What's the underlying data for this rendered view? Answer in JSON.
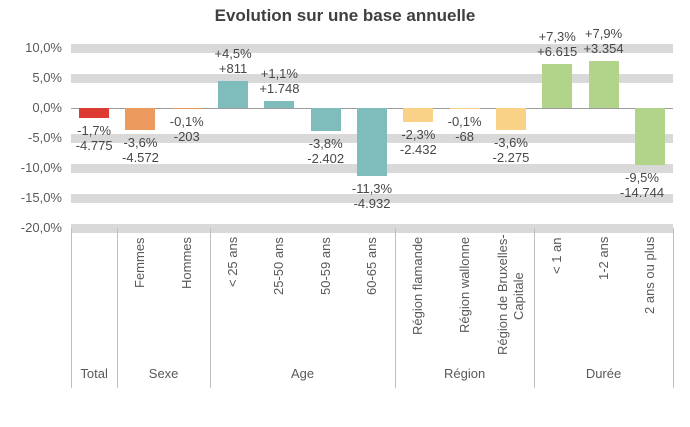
{
  "title": "Evolution sur une base annuelle",
  "colors": {
    "total_bar": "#dc3b32",
    "sexe_bar": "#ec9a5e",
    "age_bar": "#7fbdbd",
    "region_bar": "#fad287",
    "duree_bar": "#b2d38a",
    "gridline": "#d9d9d9",
    "zero_line": "#9c9c9c",
    "divider_line": "#bfbfbf",
    "title_text": "#404040",
    "data_label_text": "#474747",
    "axis_text": "#595959"
  },
  "chart_data": {
    "type": "bar",
    "title": "Evolution sur une base annuelle",
    "xlabel": "",
    "ylabel": "",
    "y_unit": "percent",
    "ylim": [
      -20,
      10
    ],
    "grid": "thick-stripes",
    "legend": "none",
    "y_axis": {
      "ticks": [
        {
          "value": 10,
          "label": "10,0%"
        },
        {
          "value": 5,
          "label": "5,0%"
        },
        {
          "value": 0,
          "label": "0,0%"
        },
        {
          "value": -5,
          "label": "-5,0%"
        },
        {
          "value": -10,
          "label": "-10,0%"
        },
        {
          "value": -15,
          "label": "-15,0%"
        },
        {
          "value": -20,
          "label": "-20,0%"
        }
      ],
      "gridline_values": [
        10,
        5,
        -5,
        -10,
        -15,
        -20
      ]
    },
    "groups": [
      {
        "label": "Total",
        "color": "#dc3b32",
        "bars": [
          {
            "category": "",
            "value_pct": -1.7,
            "abs_value": -4775,
            "pct_label": "-1,7%",
            "abs_label": "-4.775"
          }
        ]
      },
      {
        "label": "Sexe",
        "color": "#ec9a5e",
        "bars": [
          {
            "category": "Femmes",
            "value_pct": -3.6,
            "abs_value": -4572,
            "pct_label": "-3,6%",
            "abs_label": "-4.572"
          },
          {
            "category": "Hommes",
            "value_pct": -0.1,
            "abs_value": -203,
            "pct_label": "-0,1%",
            "abs_label": "-203"
          }
        ]
      },
      {
        "label": "Age",
        "color": "#7fbdbd",
        "bars": [
          {
            "category": "< 25 ans",
            "value_pct": 4.5,
            "abs_value": 811,
            "pct_label": "+4,5%",
            "abs_label": "+811"
          },
          {
            "category": "25-50 ans",
            "value_pct": 1.1,
            "abs_value": 1748,
            "pct_label": "+1,1%",
            "abs_label": "+1.748"
          },
          {
            "category": "50-59 ans",
            "value_pct": -3.8,
            "abs_value": -2402,
            "pct_label": "-3,8%",
            "abs_label": "-2.402"
          },
          {
            "category": "60-65 ans",
            "value_pct": -11.3,
            "abs_value": -4932,
            "pct_label": "-11,3%",
            "abs_label": "-4.932"
          }
        ]
      },
      {
        "label": "Région",
        "color": "#fad287",
        "bars": [
          {
            "category": "Région flamande",
            "value_pct": -2.3,
            "abs_value": -2432,
            "pct_label": "-2,3%",
            "abs_label": "-2.432"
          },
          {
            "category": "Région wallonne",
            "value_pct": -0.1,
            "abs_value": -68,
            "pct_label": "-0,1%",
            "abs_label": "-68"
          },
          {
            "category": "Région de Bruxelles-Capitale",
            "lines": [
              "Région de Bruxelles-",
              "Capitale"
            ],
            "value_pct": -3.6,
            "abs_value": -2275,
            "pct_label": "-3,6%",
            "abs_label": "-2.275"
          }
        ]
      },
      {
        "label": "Durée",
        "color": "#b2d38a",
        "bars": [
          {
            "category": "< 1 an",
            "value_pct": 7.3,
            "abs_value": 6615,
            "pct_label": "+7,3%",
            "abs_label": "+6.615"
          },
          {
            "category": "1-2 ans",
            "value_pct": 7.9,
            "abs_value": 3354,
            "pct_label": "+7,9%",
            "abs_label": "+3.354"
          },
          {
            "category": "2 ans ou plus",
            "value_pct": -9.5,
            "abs_value": -14744,
            "pct_label": "-9,5%",
            "abs_label": "-14.744"
          }
        ]
      }
    ]
  }
}
